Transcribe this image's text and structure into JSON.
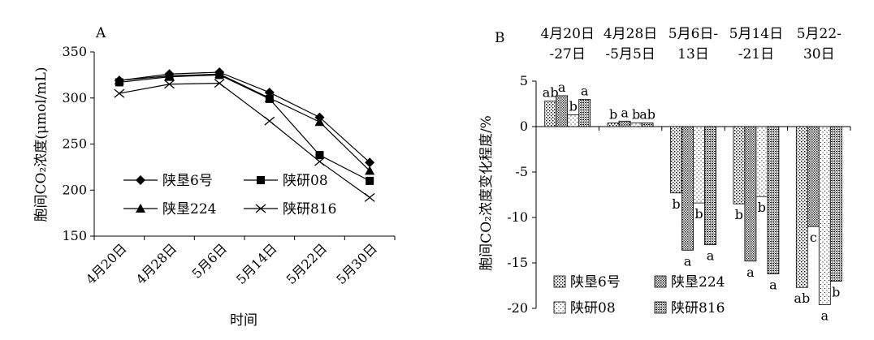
{
  "panel_a_label": "A",
  "panel_b_label": "B",
  "chart_data": [
    {
      "type": "line",
      "xlabel": "时间",
      "ylabel": "胞间CO₂浓度(μmol/mL)",
      "categories": [
        "4月20日",
        "4月28日",
        "5月6日",
        "5月14日",
        "5月22日",
        "5月30日"
      ],
      "ylim": [
        150,
        350
      ],
      "yticks": [
        150,
        200,
        250,
        300,
        350
      ],
      "legend_position": "bottom-left (inside)",
      "series": [
        {
          "name": "陕垦6号",
          "marker": "diamond",
          "values": [
            319,
            326,
            328,
            306,
            279,
            230
          ]
        },
        {
          "name": "陕研08",
          "marker": "square",
          "values": [
            317,
            323,
            325,
            299,
            238,
            210
          ]
        },
        {
          "name": "陕垦224",
          "marker": "triangle",
          "values": [
            319,
            324,
            326,
            300,
            274,
            221
          ]
        },
        {
          "name": "陕研816",
          "marker": "x",
          "values": [
            305,
            315,
            316,
            275,
            231,
            192
          ]
        }
      ]
    },
    {
      "type": "bar",
      "ylabel": "胞间CO₂浓度变化程度/%",
      "ylim": [
        -20,
        5
      ],
      "yticks": [
        5,
        0,
        -5,
        -10,
        -15,
        -20
      ],
      "categories": [
        "4月20日-27日",
        "4月28日-5月5日",
        "5月6日-13日",
        "5月14日-21日",
        "5月22-30日"
      ],
      "category_labels": [
        [
          "4月20日",
          "-27日"
        ],
        [
          "4月28日",
          "-5月5日"
        ],
        [
          "5月6日-",
          "13日"
        ],
        [
          "5月14日",
          "-21日"
        ],
        [
          "5月22-",
          "30日"
        ]
      ],
      "legend_position": "bottom-left (inside)",
      "series": [
        {
          "name": "陕垦6号",
          "values": [
            2.8,
            0.4,
            -7.3,
            -8.5,
            -17.7
          ]
        },
        {
          "name": "陕垦224",
          "values": [
            3.4,
            0.6,
            -13.6,
            -14.8,
            -11.0
          ]
        },
        {
          "name": "陕研08",
          "values": [
            1.3,
            0.4,
            -8.4,
            -7.7,
            -19.6
          ]
        },
        {
          "name": "陕研816",
          "values": [
            3.0,
            0.4,
            -13.0,
            -16.2,
            -17.0
          ]
        }
      ],
      "significance_letters": [
        [
          "ab",
          "a",
          "b",
          "a"
        ],
        [
          "b",
          "a",
          "b",
          "ab"
        ],
        [
          "b",
          "a",
          "b",
          "a"
        ],
        [
          "b",
          "a",
          "b",
          "a"
        ],
        [
          "ab",
          "c",
          "a",
          "b"
        ]
      ]
    }
  ]
}
